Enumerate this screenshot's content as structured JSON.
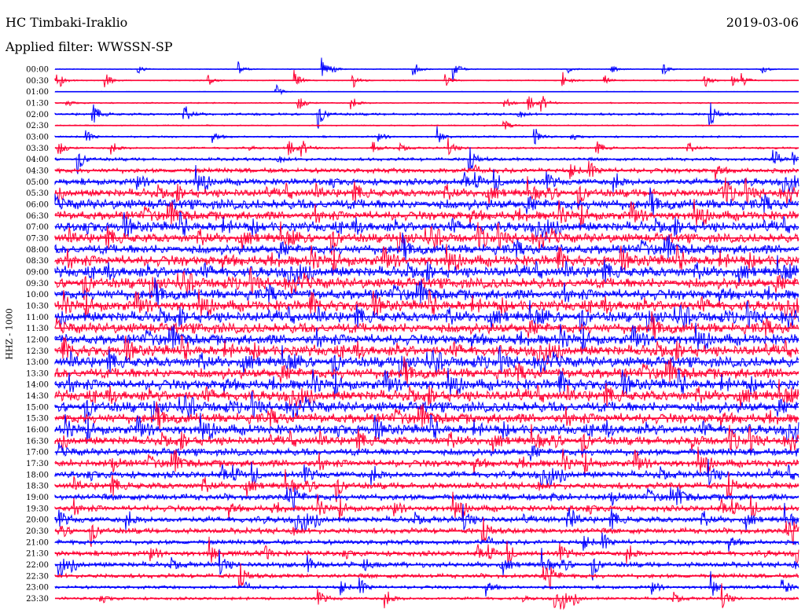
{
  "header": {
    "station": "HC Timbaki-Iraklio",
    "date": "2019-03-06",
    "filter": "Applied filter: WWSSN-SP",
    "channel": "HHZ - 1000"
  },
  "colors": {
    "trace_a": "#0000ff",
    "trace_b": "#ff0033"
  },
  "chart_data": {
    "type": "line",
    "title": "HC Timbaki-Iraklio",
    "ylabel": "HHZ - 1000",
    "grid": false,
    "categories": [
      "00:00",
      "00:30",
      "01:00",
      "01:30",
      "02:00",
      "02:30",
      "03:00",
      "03:30",
      "04:00",
      "04:30",
      "05:00",
      "05:30",
      "06:00",
      "06:30",
      "07:00",
      "07:30",
      "08:00",
      "08:30",
      "09:00",
      "09:30",
      "10:00",
      "10:30",
      "11:00",
      "11:30",
      "12:00",
      "12:30",
      "13:00",
      "13:30",
      "14:00",
      "14:30",
      "15:00",
      "15:30",
      "16:00",
      "16:30",
      "17:00",
      "17:30",
      "18:00",
      "18:30",
      "19:00",
      "19:30",
      "20:00",
      "20:30",
      "21:00",
      "21:30",
      "22:00",
      "22:30",
      "23:00",
      "23:30"
    ],
    "series": [
      {
        "color": "blue",
        "rows": "00:00,01:00,02:00,...,23:00"
      },
      {
        "color": "red",
        "rows": "00:30,01:30,02:30,...,23:30"
      }
    ],
    "activity": [
      0.4,
      0.5,
      0.3,
      0.6,
      1.2,
      0.6,
      0.9,
      1.0,
      1.6,
      2.4,
      3.2,
      4.0,
      5.0,
      4.5,
      4.8,
      4.6,
      4.8,
      5.2,
      5.2,
      5.2,
      5.2,
      5.2,
      5.2,
      5.2,
      5.2,
      5.2,
      5.2,
      5.2,
      5.2,
      5.2,
      5.2,
      5.0,
      4.8,
      4.2,
      3.6,
      3.6,
      3.4,
      3.2,
      3.2,
      3.0,
      3.0,
      2.8,
      2.4,
      2.6,
      2.6,
      2.2,
      1.6,
      1.4
    ]
  }
}
